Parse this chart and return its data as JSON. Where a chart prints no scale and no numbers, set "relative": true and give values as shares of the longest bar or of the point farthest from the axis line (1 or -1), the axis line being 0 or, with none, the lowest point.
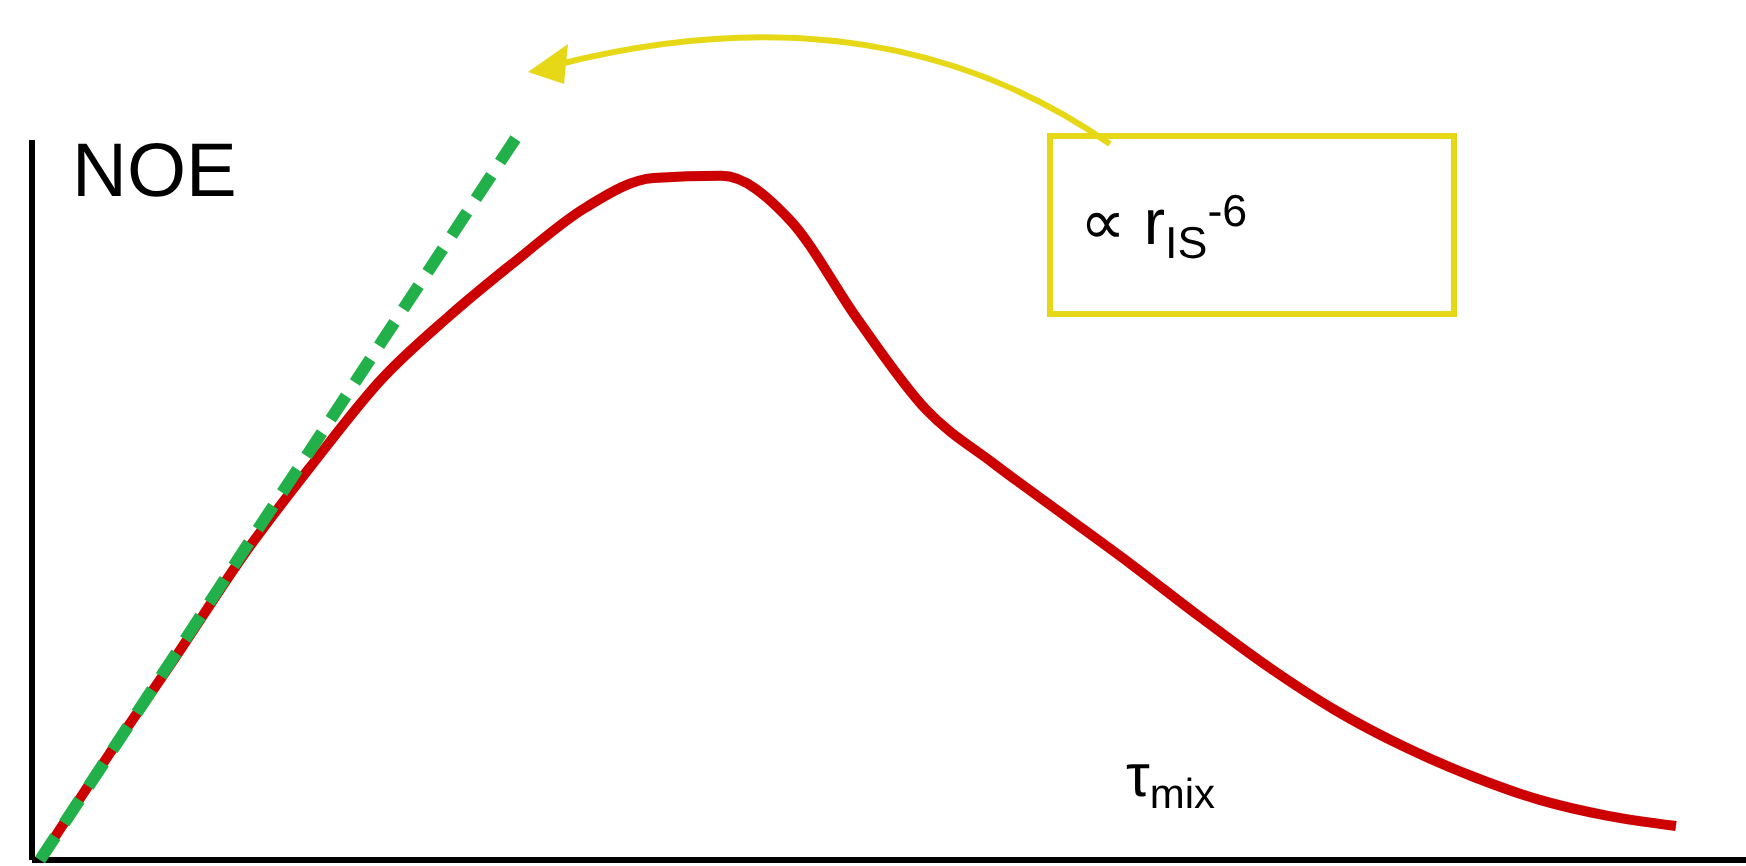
{
  "chart_data": {
    "type": "line",
    "relative": true,
    "ylabel": "NOE",
    "xlabel": "τ$_{mix}$",
    "categories": [
      null,
      null,
      null,
      null,
      null,
      null,
      null,
      null,
      null,
      null,
      null,
      null,
      null,
      null,
      null,
      null,
      null,
      null,
      null,
      null,
      null,
      null,
      null,
      null,
      null
    ],
    "series": [
      {
        "color": "#cc0000",
        "line_style": "solid",
        "values": [
          0,
          0.144,
          0.282,
          0.423,
          0.547,
          0.663,
          0.751,
          0.829,
          0.901,
          0.942,
          0.945,
          0.884,
          0.746,
          0.622,
          0.547,
          0.478,
          0.409,
          0.337,
          0.268,
          0.207,
          0.157,
          0.116,
          0.083,
          0.061,
          0.047
        ]
      },
      {
        "color": "#22b04a",
        "line_style": "dashed",
        "values": [
          0,
          0.143,
          0.286,
          0.429,
          0.571,
          0.714,
          0.857,
          1,
          null,
          null,
          null,
          null,
          null,
          null,
          null,
          null,
          null,
          null,
          null,
          null,
          null,
          null,
          null,
          null,
          null
        ]
      }
    ],
    "annotations": [
      "∝ r$_{IS}$$^{-6}$"
    ]
  }
}
